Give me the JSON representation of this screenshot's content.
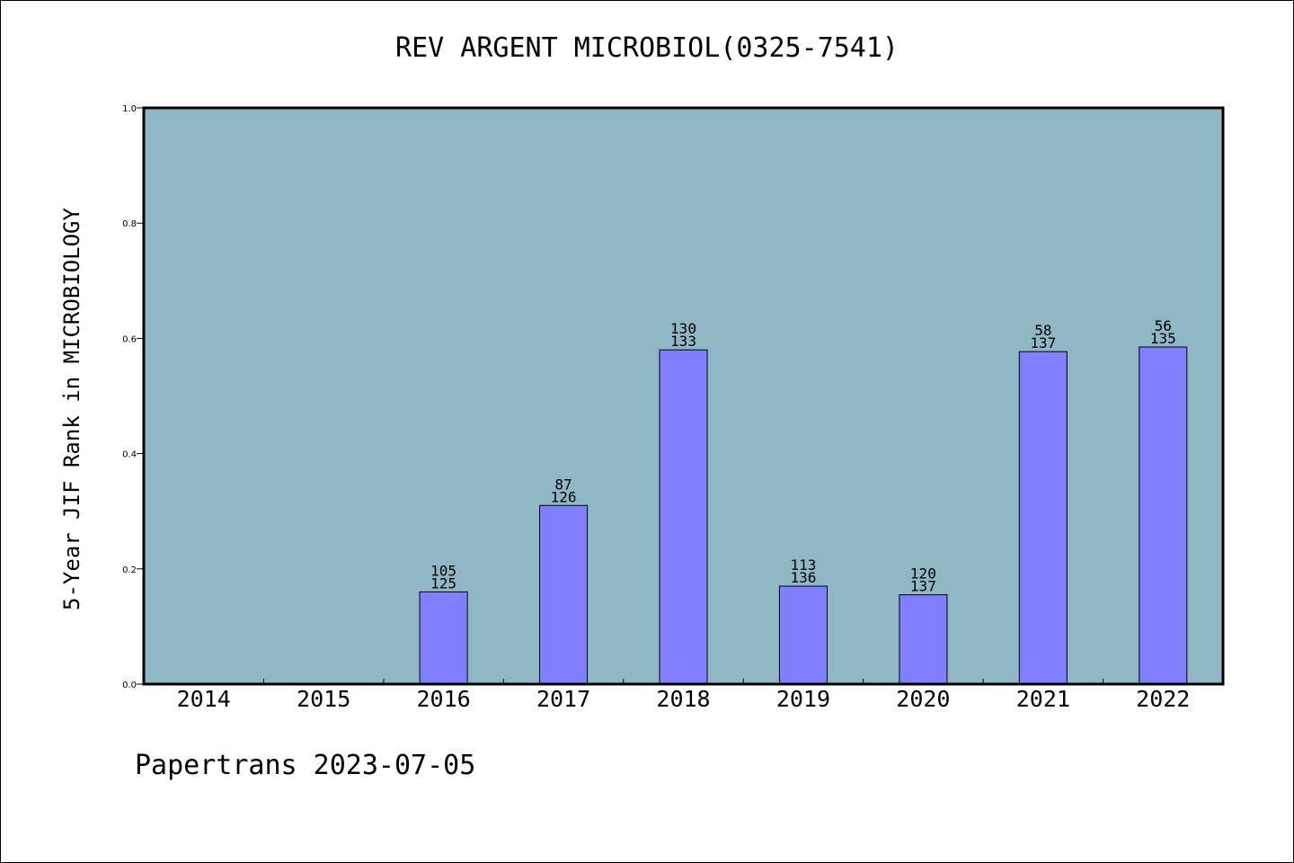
{
  "chart_data": {
    "type": "bar",
    "title": "REV ARGENT MICROBIOL(0325-7541)",
    "xlabel": "",
    "ylabel": "5-Year JIF Rank in MICROBIOLOGY",
    "ylim": [
      0,
      1.0
    ],
    "yticks": [
      "0.0",
      "0.2",
      "0.4",
      "0.6",
      "0.8",
      "1.0"
    ],
    "categories": [
      "2014",
      "2015",
      "2016",
      "2017",
      "2018",
      "2019",
      "2020",
      "2021",
      "2022"
    ],
    "values": [
      null,
      null,
      0.16,
      0.31,
      0.58,
      0.17,
      0.155,
      0.577,
      0.585
    ],
    "labels_top": [
      "",
      "",
      "105",
      "87",
      "130",
      "113",
      "120",
      "58",
      "56"
    ],
    "labels_bottom": [
      "",
      "",
      "125",
      "126",
      "133",
      "136",
      "137",
      "137",
      "135"
    ],
    "colors": {
      "plot_bg": "#8fb7c5",
      "bar": "#8080ff",
      "axis": "#000000"
    }
  },
  "footer": "Papertrans 2023-07-05"
}
